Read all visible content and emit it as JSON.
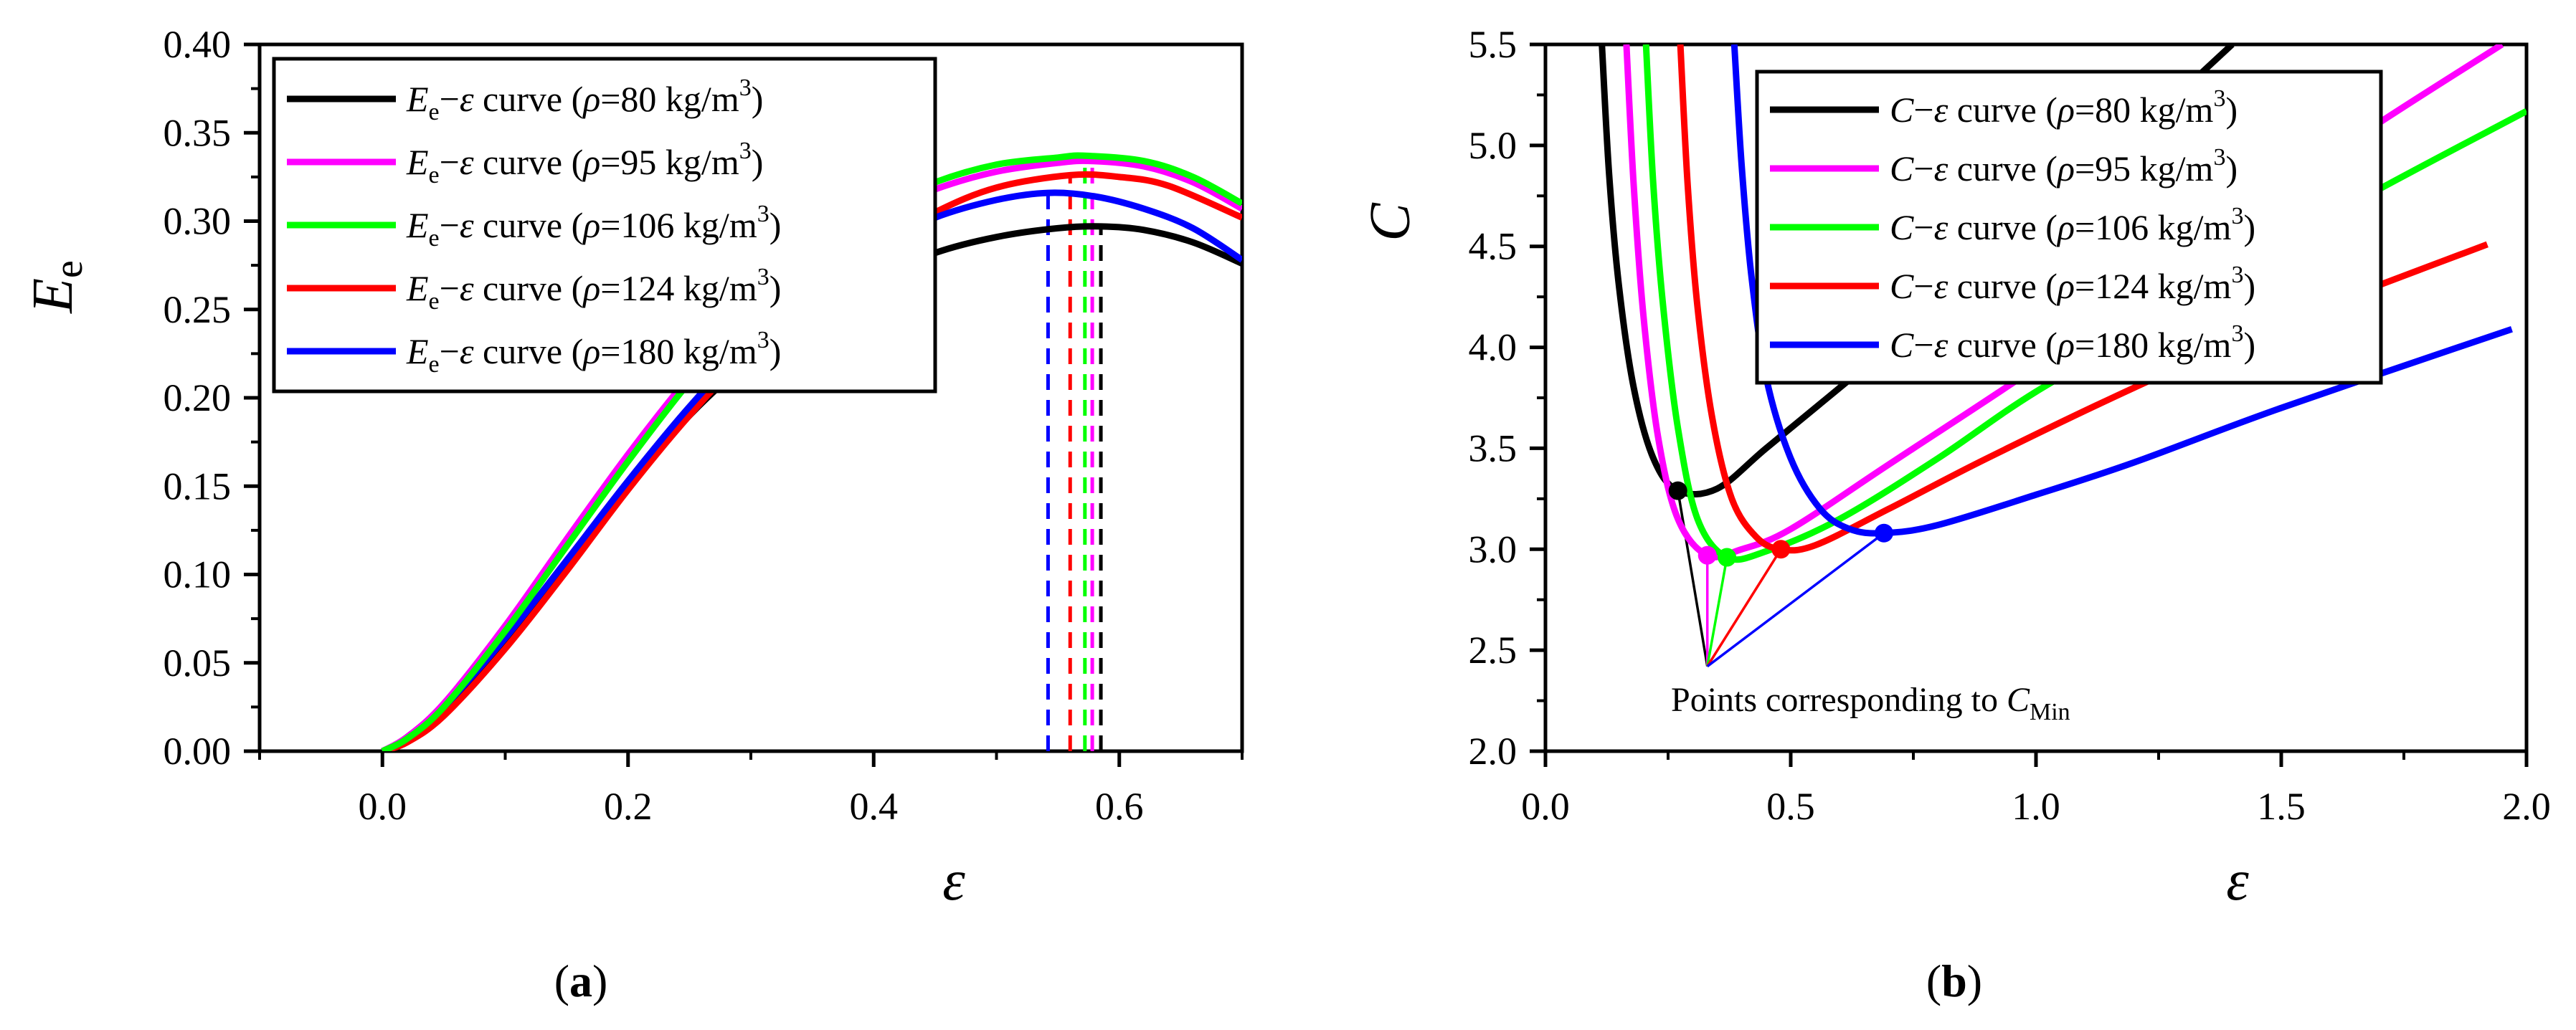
{
  "colors": {
    "s80": "#000000",
    "s95": "#ff00ff",
    "s106": "#00ff00",
    "s124": "#ff0000",
    "s180": "#0000ff"
  },
  "chart_data": [
    {
      "type": "line",
      "panel_label": "(a)",
      "xlabel": "ε",
      "ylabel": "E",
      "ylabel_sub": "e",
      "xlim": [
        -0.1,
        0.7
      ],
      "ylim": [
        0,
        0.4
      ],
      "xticks": [
        0.0,
        0.2,
        0.4,
        0.6
      ],
      "xtick_labels": [
        "0.0",
        "0.2",
        "0.4",
        "0.6"
      ],
      "yticks": [
        0.0,
        0.05,
        0.1,
        0.15,
        0.2,
        0.25,
        0.3,
        0.35,
        0.4
      ],
      "ytick_labels": [
        "0.00",
        "0.05",
        "0.10",
        "0.15",
        "0.20",
        "0.25",
        "0.30",
        "0.35",
        "0.40"
      ],
      "legend_position": "top-left",
      "series": [
        {
          "key": "s80",
          "name": "E_e−ε curve (ρ=80 kg/m^3)",
          "legend_parts": [
            "E",
            "e",
            "−ε curve (",
            "ρ",
            "=80 kg/m",
            "3",
            ")"
          ],
          "x": [
            0,
            0.02,
            0.05,
            0.1,
            0.15,
            0.2,
            0.25,
            0.3,
            0.35,
            0.4,
            0.45,
            0.5,
            0.55,
            0.585,
            0.62,
            0.66,
            0.7
          ],
          "y": [
            0,
            0.006,
            0.022,
            0.06,
            0.104,
            0.15,
            0.19,
            0.222,
            0.248,
            0.267,
            0.282,
            0.291,
            0.296,
            0.297,
            0.295,
            0.288,
            0.276
          ],
          "peak_x": 0.585
        },
        {
          "key": "s95",
          "name": "E_e−ε curve (ρ=95 kg/m^3)",
          "legend_parts": [
            "E",
            "e",
            "−ε curve (",
            "ρ",
            "=95 kg/m",
            "3",
            ")"
          ],
          "x": [
            0,
            0.02,
            0.05,
            0.1,
            0.15,
            0.2,
            0.25,
            0.3,
            0.35,
            0.4,
            0.45,
            0.5,
            0.55,
            0.578,
            0.62,
            0.66,
            0.7
          ],
          "y": [
            0,
            0.008,
            0.027,
            0.071,
            0.12,
            0.168,
            0.212,
            0.25,
            0.28,
            0.303,
            0.318,
            0.328,
            0.333,
            0.334,
            0.331,
            0.322,
            0.307
          ],
          "peak_x": 0.578
        },
        {
          "key": "s106",
          "name": "E_e−ε curve (ρ=106 kg/m^3)",
          "legend_parts": [
            "E",
            "e",
            "−ε curve (",
            "ρ",
            "=106 kg/m",
            "3",
            ")"
          ],
          "x": [
            0,
            0.02,
            0.05,
            0.1,
            0.15,
            0.2,
            0.25,
            0.3,
            0.35,
            0.4,
            0.45,
            0.5,
            0.55,
            0.572,
            0.62,
            0.66,
            0.7
          ],
          "y": [
            0,
            0.007,
            0.025,
            0.068,
            0.116,
            0.164,
            0.209,
            0.249,
            0.281,
            0.306,
            0.322,
            0.332,
            0.336,
            0.337,
            0.334,
            0.325,
            0.31
          ],
          "peak_x": 0.572
        },
        {
          "key": "s124",
          "name": "E_e−ε curve (ρ=124 kg/m^3)",
          "legend_parts": [
            "E",
            "e",
            "−ε curve (",
            "ρ",
            "=124 kg/m",
            "3",
            ")"
          ],
          "x": [
            0,
            0.02,
            0.05,
            0.1,
            0.15,
            0.2,
            0.25,
            0.3,
            0.35,
            0.4,
            0.45,
            0.5,
            0.56,
            0.6,
            0.64,
            0.7
          ],
          "y": [
            0,
            0.005,
            0.02,
            0.058,
            0.102,
            0.148,
            0.19,
            0.227,
            0.259,
            0.285,
            0.305,
            0.319,
            0.326,
            0.325,
            0.32,
            0.302
          ],
          "peak_x": 0.56
        },
        {
          "key": "s180",
          "name": "E_e−ε curve (ρ=180 kg/m^3)",
          "legend_parts": [
            "E",
            "e",
            "−ε curve (",
            "ρ",
            "=180 kg/m",
            "3",
            ")"
          ],
          "x": [
            0,
            0.02,
            0.05,
            0.1,
            0.15,
            0.2,
            0.25,
            0.3,
            0.35,
            0.4,
            0.45,
            0.5,
            0.542,
            0.58,
            0.62,
            0.66,
            0.7
          ],
          "y": [
            0,
            0.007,
            0.025,
            0.064,
            0.108,
            0.153,
            0.195,
            0.232,
            0.263,
            0.286,
            0.302,
            0.312,
            0.316,
            0.314,
            0.307,
            0.296,
            0.278
          ],
          "peak_x": 0.542
        }
      ]
    },
    {
      "type": "line",
      "panel_label": "(b)",
      "xlabel": "ε",
      "ylabel": "C",
      "xlim": [
        0,
        2.0
      ],
      "ylim": [
        2.0,
        5.5
      ],
      "xticks": [
        0.0,
        0.5,
        1.0,
        1.5,
        2.0
      ],
      "xtick_labels": [
        "0.0",
        "0.5",
        "1.0",
        "1.5",
        "2.0"
      ],
      "yticks": [
        2.0,
        2.5,
        3.0,
        3.5,
        4.0,
        4.5,
        5.0,
        5.5
      ],
      "ytick_labels": [
        "2.0",
        "2.5",
        "3.0",
        "3.5",
        "4.0",
        "4.5",
        "5.0",
        "5.5"
      ],
      "legend_position": "top-right",
      "annotation": {
        "text_parts": [
          "Points corresponding to ",
          "C",
          "Min"
        ],
        "apex": [
          0.33,
          2.42
        ]
      },
      "series": [
        {
          "key": "s80",
          "name": "C−ε curve (ρ=80 kg/m^3)",
          "legend_parts": [
            "C",
            "",
            "−ε curve (",
            "ρ",
            "=80 kg/m",
            "3",
            ")"
          ],
          "x": [
            0.115,
            0.13,
            0.15,
            0.18,
            0.22,
            0.27,
            0.35,
            0.45,
            0.6,
            0.8,
            1.0,
            1.2,
            1.4
          ],
          "y": [
            5.5,
            4.85,
            4.3,
            3.8,
            3.45,
            3.29,
            3.3,
            3.5,
            3.8,
            4.2,
            4.6,
            5.05,
            5.5
          ],
          "min": [
            0.27,
            3.29
          ]
        },
        {
          "key": "s95",
          "name": "C−ε curve (ρ=95 kg/m^3)",
          "legend_parts": [
            "C",
            "",
            "−ε curve (",
            "ρ",
            "=95 kg/m",
            "3",
            ")"
          ],
          "x": [
            0.165,
            0.18,
            0.2,
            0.23,
            0.27,
            0.33,
            0.4,
            0.5,
            0.7,
            1.0,
            1.3,
            1.6,
            1.95
          ],
          "y": [
            5.5,
            4.8,
            4.15,
            3.55,
            3.15,
            2.97,
            3.0,
            3.1,
            3.42,
            3.9,
            4.4,
            4.95,
            5.5
          ],
          "min": [
            0.33,
            2.97
          ]
        },
        {
          "key": "s106",
          "name": "C−ε curve (ρ=106 kg/m^3)",
          "legend_parts": [
            "C",
            "",
            "−ε curve (",
            "ρ",
            "=106 kg/m",
            "3",
            ")"
          ],
          "x": [
            0.205,
            0.22,
            0.24,
            0.27,
            0.31,
            0.37,
            0.45,
            0.6,
            0.8,
            1.0,
            1.3,
            1.6,
            2.0
          ],
          "y": [
            5.5,
            4.8,
            4.2,
            3.6,
            3.15,
            2.96,
            2.99,
            3.15,
            3.45,
            3.78,
            4.2,
            4.65,
            5.17
          ],
          "min": [
            0.37,
            2.96
          ]
        },
        {
          "key": "s124",
          "name": "C−ε curve (ρ=124 kg/m^3)",
          "legend_parts": [
            "C",
            "",
            "−ε curve (",
            "ρ",
            "=124 kg/m",
            "3",
            ")"
          ],
          "x": [
            0.275,
            0.29,
            0.31,
            0.34,
            0.38,
            0.43,
            0.48,
            0.55,
            0.7,
            0.9,
            1.2,
            1.5,
            1.92
          ],
          "y": [
            5.5,
            4.8,
            4.2,
            3.65,
            3.25,
            3.06,
            3.0,
            3.02,
            3.2,
            3.45,
            3.8,
            4.12,
            4.51
          ],
          "min": [
            0.48,
            3.0
          ]
        },
        {
          "key": "s180",
          "name": "C−ε curve (ρ=180 kg/m^3)",
          "legend_parts": [
            "C",
            "",
            "−ε curve (",
            "ρ",
            "=180 kg/m",
            "3",
            ")"
          ],
          "x": [
            0.385,
            0.4,
            0.42,
            0.45,
            0.5,
            0.56,
            0.62,
            0.69,
            0.8,
            1.0,
            1.2,
            1.5,
            1.97
          ],
          "y": [
            5.5,
            4.9,
            4.35,
            3.85,
            3.45,
            3.2,
            3.1,
            3.08,
            3.12,
            3.27,
            3.43,
            3.7,
            4.09
          ],
          "min": [
            0.69,
            3.08
          ]
        }
      ]
    }
  ]
}
